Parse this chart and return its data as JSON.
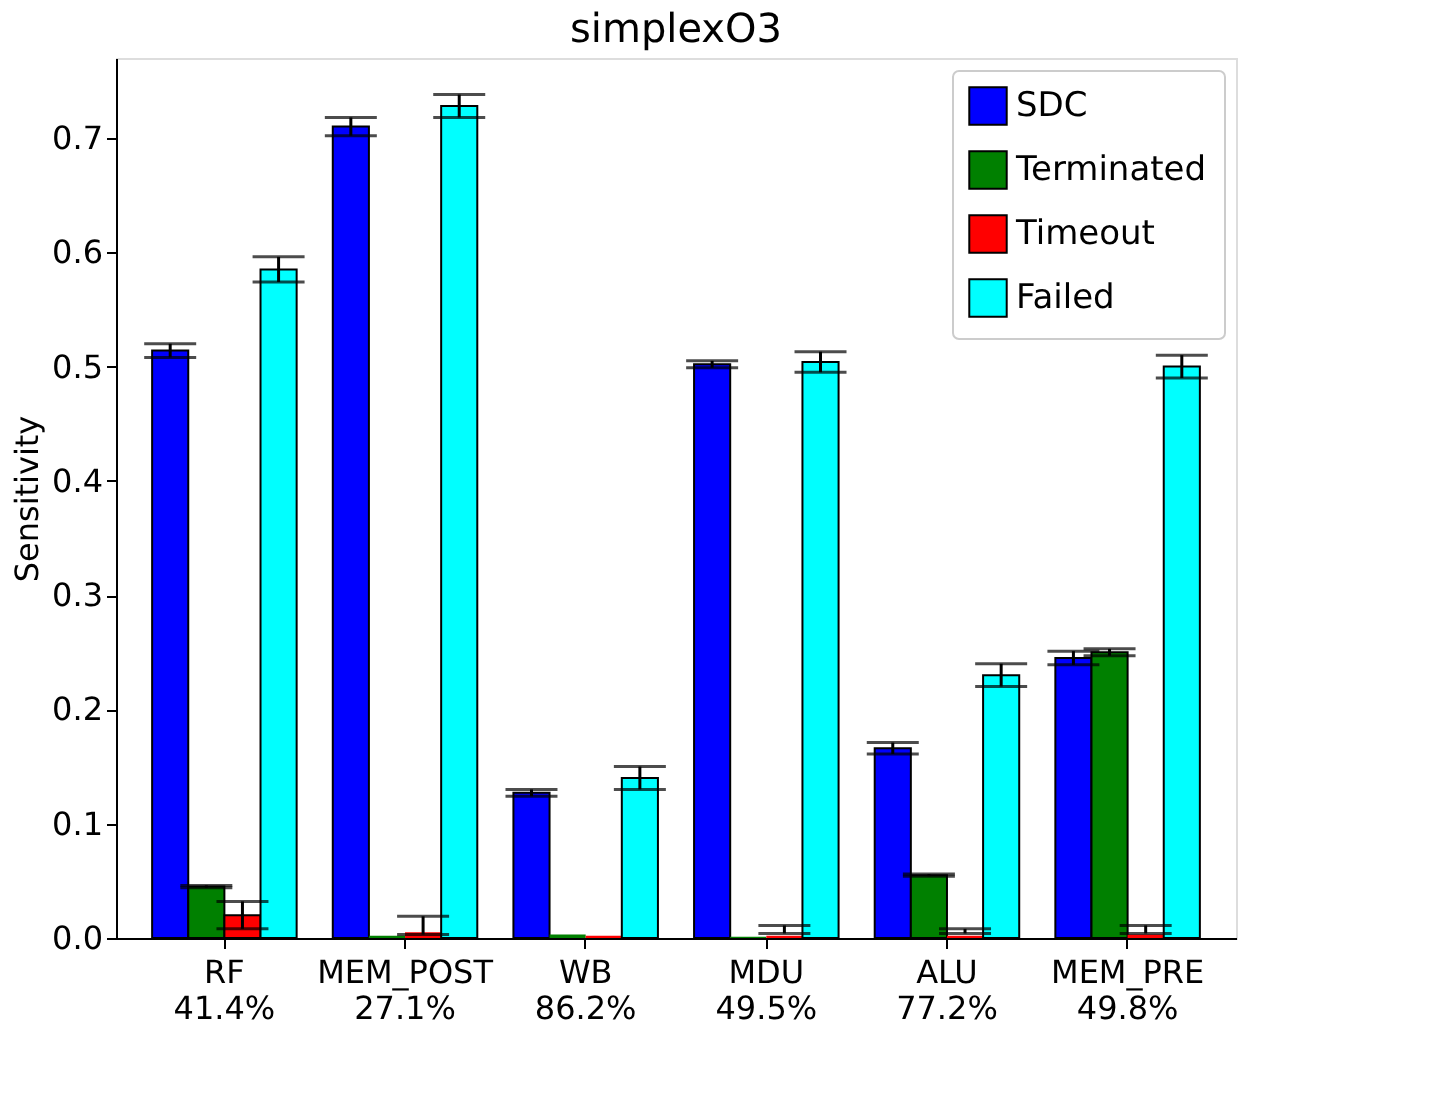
{
  "chart_data": {
    "type": "bar",
    "title": "simplexO3",
    "ylabel": "Sensitivity",
    "categories": [
      "RF\n41.4%",
      "MEM_POST\n27.1%",
      "WB\n86.2%",
      "MDU\n49.5%",
      "ALU\n77.2%",
      "MEM_PRE\n49.8%"
    ],
    "series": [
      {
        "name": "SDC",
        "color": "#0000ff",
        "values": [
          0.514,
          0.71,
          0.127,
          0.502,
          0.166,
          0.245
        ],
        "errors": [
          0.006,
          0.008,
          0.003,
          0.003,
          0.005,
          0.006
        ]
      },
      {
        "name": "Terminated",
        "color": "#008000",
        "values": [
          0.045,
          0.002,
          0.003,
          0.001,
          0.055,
          0.25
        ],
        "errors": [
          0.001,
          null,
          null,
          null,
          0.001,
          0.003
        ]
      },
      {
        "name": "Timeout",
        "color": "#ff0000",
        "values": [
          0.02,
          0.005,
          0.002,
          0.002,
          0.002,
          0.003
        ],
        "errors": [
          0.012,
          [
            0.003,
            0.019
          ],
          null,
          [
            0.004,
            0.011
          ],
          [
            0.004,
            0.008
          ],
          [
            0.004,
            0.011
          ]
        ]
      },
      {
        "name": "Failed",
        "color": "#00ffff",
        "values": [
          0.585,
          0.728,
          0.14,
          0.504,
          0.23,
          0.5
        ],
        "errors": [
          0.011,
          0.01,
          0.01,
          0.009,
          0.01,
          0.01
        ]
      }
    ],
    "ylim": [
      0,
      0.77
    ],
    "yticks": [
      {
        "value": 0,
        "label": "0.0"
      },
      0.1,
      0.2,
      0.3,
      0.4,
      0.5,
      0.6,
      0.7
    ],
    "grid": false,
    "legend": "top right"
  }
}
